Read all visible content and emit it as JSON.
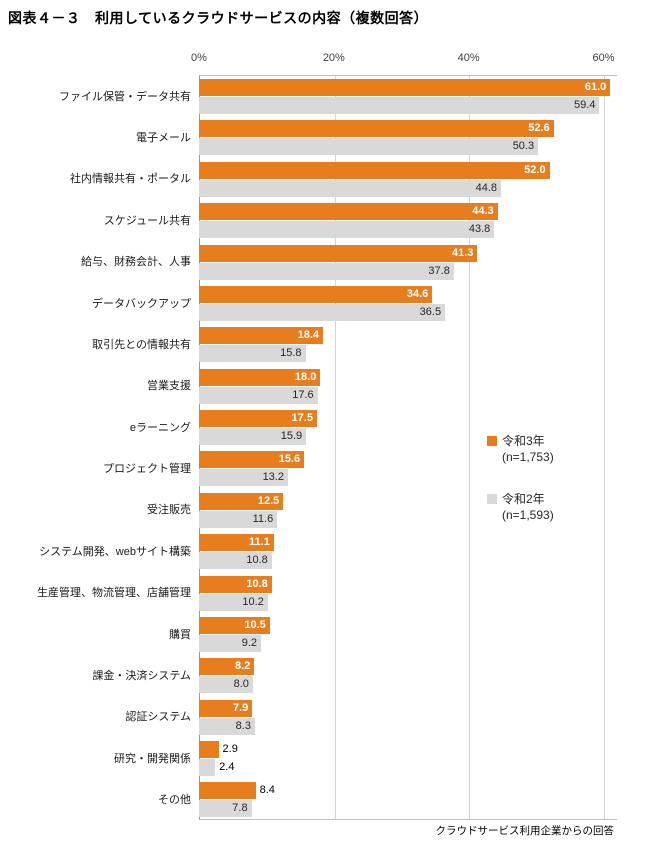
{
  "title": "図表４－３　利用しているクラウドサービスの内容（複数回答）",
  "footnote": "クラウドサービス利用企業からの回答",
  "chart_data": {
    "type": "bar",
    "orientation": "horizontal",
    "title": "図表４－３　利用しているクラウドサービスの内容（複数回答）",
    "categories": [
      "ファイル保管・データ共有",
      "電子メール",
      "社内情報共有・ポータル",
      "スケジュール共有",
      "給与、財務会計、人事",
      "データバックアップ",
      "取引先との情報共有",
      "営業支援",
      "eラーニング",
      "プロジェクト管理",
      "受注販売",
      "システム開発、webサイト構築",
      "生産管理、物流管理、店舗管理",
      "購買",
      "課金・決済システム",
      "認証システム",
      "研究・開発関係",
      "その他"
    ],
    "series": [
      {
        "name": "令和3年",
        "n_label": "(n=1,753)",
        "color": "#E87D1E",
        "values": [
          61.0,
          52.6,
          52.0,
          44.3,
          41.3,
          34.6,
          18.4,
          18.0,
          17.5,
          15.6,
          12.5,
          11.1,
          10.8,
          10.5,
          8.2,
          7.9,
          2.9,
          8.4
        ],
        "label_placement": [
          "in",
          "in",
          "in",
          "in",
          "in",
          "in",
          "in",
          "in",
          "in",
          "in",
          "in",
          "in",
          "in",
          "in",
          "in",
          "in",
          "out",
          "out"
        ]
      },
      {
        "name": "令和2年",
        "n_label": "(n=1,593)",
        "color": "#D9D9D9",
        "values": [
          59.4,
          50.3,
          44.8,
          43.8,
          37.8,
          36.5,
          15.8,
          17.6,
          15.9,
          13.2,
          11.6,
          10.8,
          10.2,
          9.2,
          8.0,
          8.3,
          2.4,
          7.8
        ],
        "label_placement": [
          "in",
          "in",
          "in",
          "in",
          "in",
          "in",
          "in",
          "in",
          "in",
          "in",
          "in",
          "in",
          "in",
          "in",
          "in",
          "in",
          "out",
          "in"
        ]
      }
    ],
    "x_ticks": [
      {
        "value": 0,
        "label": "0%"
      },
      {
        "value": 20,
        "label": "20%"
      },
      {
        "value": 40,
        "label": "40%"
      },
      {
        "value": 60,
        "label": "60%"
      }
    ],
    "xmax": 62,
    "grid": true,
    "legend_position": "middle-right"
  }
}
